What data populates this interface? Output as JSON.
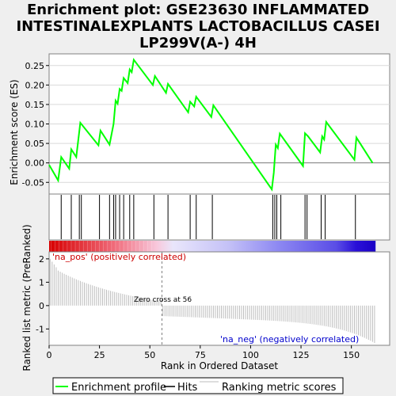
{
  "title_lines": [
    "Enrichment plot: GSE23630 INFLAMMATED",
    "INTESTINALEXPLANTS LACTOBACILLUS CASEI",
    "LP299V(A-) 4H"
  ],
  "colors": {
    "es_line": "#00ff00",
    "hit": "#000000",
    "metric": "#bebebe",
    "zero_line": "#808080",
    "pos_label": "#cc0000",
    "neg_label": "#0000cc"
  },
  "chart_data": [
    {
      "type": "line",
      "name": "enrichment-profile",
      "ylabel": "Enrichment score (ES)",
      "ylim": [
        -0.08,
        0.28
      ],
      "xlim": [
        0,
        169
      ],
      "yticks": [
        -0.05,
        0.0,
        0.05,
        0.1,
        0.15,
        0.2,
        0.25
      ],
      "ytick_labels": [
        "-0.05",
        "0.00",
        "0.05",
        "0.10",
        "0.15",
        "0.20",
        "0.25"
      ],
      "x": [
        0,
        4.5,
        6,
        10,
        11,
        13.5,
        15.5,
        24.5,
        25.5,
        30,
        32,
        33,
        34,
        35,
        36,
        37,
        39,
        40,
        41,
        42,
        51.5,
        52.5,
        58,
        59,
        69,
        70,
        72,
        73,
        80.5,
        81.5,
        110.5,
        111.5,
        112.5,
        113.5,
        114.5,
        126,
        127,
        128.5,
        134.5,
        135.5,
        136.5,
        137.5,
        151.5,
        152.5,
        160.5
      ],
      "y": [
        -0.005,
        -0.045,
        0.015,
        -0.015,
        0.035,
        0.015,
        0.103,
        0.045,
        0.083,
        0.047,
        0.1,
        0.16,
        0.152,
        0.19,
        0.185,
        0.218,
        0.205,
        0.24,
        0.233,
        0.265,
        0.2,
        0.223,
        0.18,
        0.203,
        0.13,
        0.157,
        0.145,
        0.17,
        0.118,
        0.148,
        -0.068,
        -0.025,
        0.047,
        0.038,
        0.075,
        -0.008,
        0.076,
        0.068,
        0.027,
        0.068,
        0.06,
        0.105,
        0.008,
        0.065,
        0.0
      ]
    },
    {
      "type": "bar",
      "name": "hits",
      "x": [
        6,
        11,
        15,
        16,
        25,
        30,
        32,
        33,
        35,
        37,
        40,
        42,
        52,
        59,
        70,
        73,
        81,
        111,
        112,
        113,
        115,
        127,
        128,
        135,
        137,
        152
      ]
    },
    {
      "type": "bar",
      "name": "ranked-list-metric",
      "xlabel": "Rank in Ordered Dataset",
      "ylabel": "Ranked list metric (PreRanked)",
      "ylim": [
        -1.7,
        2.3
      ],
      "xticks": [
        0,
        25,
        50,
        75,
        100,
        125,
        150
      ],
      "xtick_labels": [
        "0",
        "25",
        "50",
        "75",
        "100",
        "125",
        "150"
      ],
      "yticks": [
        2,
        1,
        0,
        -1
      ],
      "ytick_labels": [
        "2",
        "1",
        "0",
        "-1"
      ],
      "zero_cross": 56,
      "value_range": [
        2.0,
        -1.6
      ],
      "annotations": {
        "zero_cross": "Zero cross at 56",
        "pos": "'na_pos' (positively correlated)",
        "neg": "'na_neg' (negatively correlated)"
      }
    }
  ],
  "legend": {
    "items": [
      {
        "label": "Enrichment profile",
        "color": "#00ff00"
      },
      {
        "label": "Hits",
        "color": "#000000"
      },
      {
        "label": "Ranking metric scores",
        "color": "#bebebe"
      }
    ]
  }
}
